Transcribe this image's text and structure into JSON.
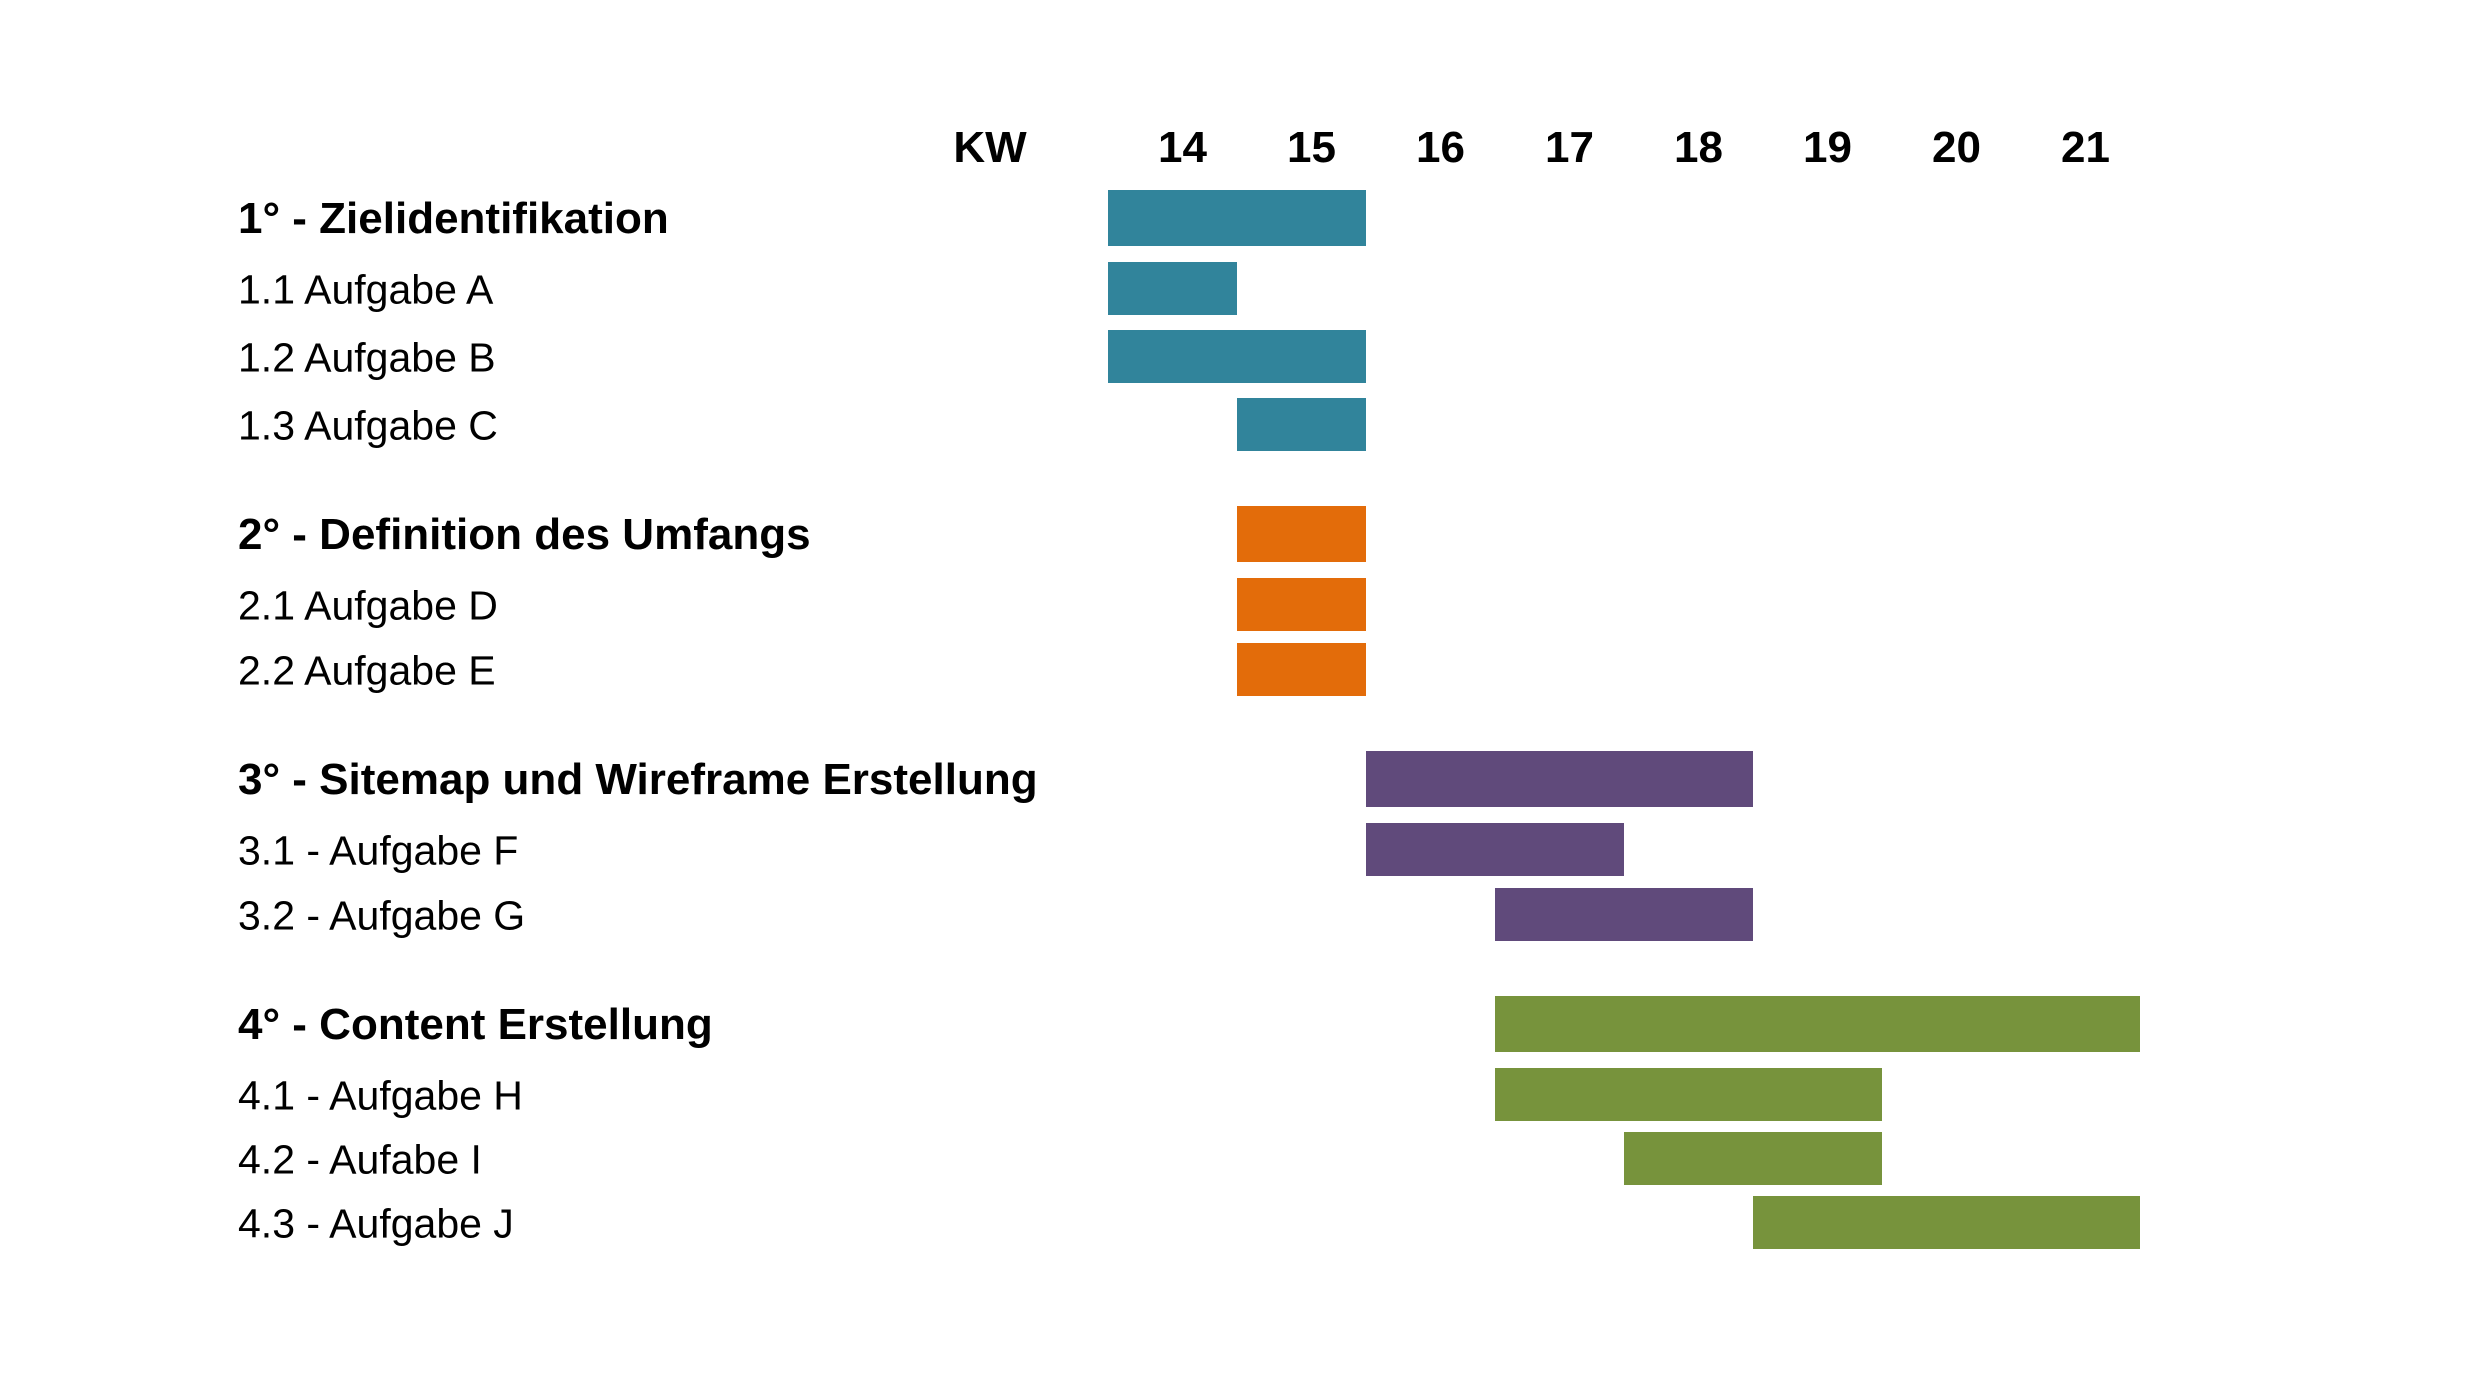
{
  "chart_data": {
    "type": "gantt",
    "axis_label": "KW",
    "weeks": [
      14,
      15,
      16,
      17,
      18,
      19,
      20,
      21
    ],
    "groups": [
      {
        "label": "1° - Zielidentifikation",
        "color": "#31849b",
        "start": 14,
        "end": 15,
        "tasks": [
          {
            "label": "1.1 Aufgabe A",
            "start": 14,
            "end": 14
          },
          {
            "label": "1.2 Aufgabe B",
            "start": 14,
            "end": 15
          },
          {
            "label": "1.3 Aufgabe C",
            "start": 15,
            "end": 15
          }
        ]
      },
      {
        "label": "2° - Definition des Umfangs",
        "color": "#e36c0a",
        "start": 15,
        "end": 15,
        "tasks": [
          {
            "label": "2.1 Aufgabe D",
            "start": 15,
            "end": 15
          },
          {
            "label": "2.2 Aufgabe E",
            "start": 15,
            "end": 15
          }
        ]
      },
      {
        "label": "3° - Sitemap und Wireframe Erstellung",
        "color": "#604a7b",
        "start": 16,
        "end": 18,
        "tasks": [
          {
            "label": "3.1 - Aufgabe F",
            "start": 16,
            "end": 17
          },
          {
            "label": "3.2 - Aufgabe G",
            "start": 17,
            "end": 18
          }
        ]
      },
      {
        "label": "4° - Content Erstellung",
        "color": "#77933c",
        "start": 17,
        "end": 21,
        "tasks": [
          {
            "label": "4.1 - Aufgabe H",
            "start": 17,
            "end": 19
          },
          {
            "label": "4.2 - Aufabe I",
            "start": 18,
            "end": 19
          },
          {
            "label": "4.3 - Aufgabe J",
            "start": 19,
            "end": 21
          }
        ]
      }
    ]
  }
}
